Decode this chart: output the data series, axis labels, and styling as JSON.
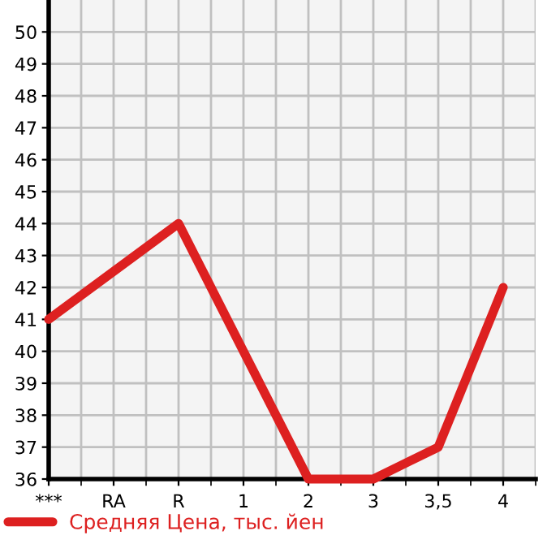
{
  "chart_data": {
    "type": "line",
    "categories": [
      "***",
      "RA",
      "R",
      "1",
      "2",
      "3",
      "3,5",
      "4"
    ],
    "series": [
      {
        "name": "Средняя Цена, тыс. йен",
        "color": "#dd2020",
        "values": [
          41,
          42.5,
          44,
          40,
          36,
          36,
          37,
          42
        ]
      }
    ],
    "ylim": [
      36,
      51
    ],
    "yticks": [
      36,
      37,
      38,
      39,
      40,
      41,
      42,
      43,
      44,
      45,
      46,
      47,
      48,
      49,
      50
    ],
    "grid": true,
    "legend": "bottom",
    "marker": "none",
    "line_style": "solid"
  }
}
